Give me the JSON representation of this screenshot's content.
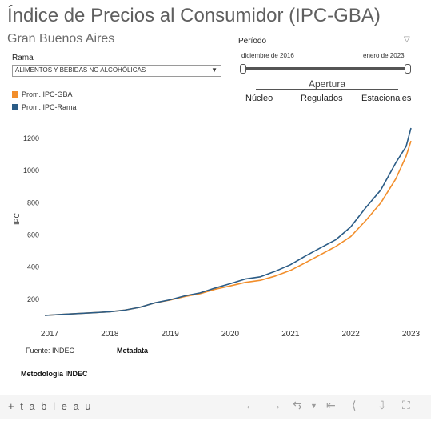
{
  "header": {
    "title": "Índice de Precios al Consumidor  (IPC-GBA)",
    "subtitle": "Gran Buenos Aires"
  },
  "filters": {
    "rama_label": "Rama",
    "rama_value": "ALIMENTOS Y BEBIDAS NO ALCOHÓLICAS",
    "periodo_label": "Período",
    "periodo_start": "diciembre de 2016",
    "periodo_end": "enero de 2023"
  },
  "apertura": {
    "title": "Apertura",
    "items": [
      "Núcleo",
      "Regulados",
      "Estacionales"
    ]
  },
  "legend": [
    {
      "label": "Prom. IPC-GBA",
      "color": "#f28e2b"
    },
    {
      "label": "Prom. IPC-Rama",
      "color": "#2b5c86"
    }
  ],
  "chart_data": {
    "type": "line",
    "ylabel": "IPC",
    "ylim": [
      80,
      1290
    ],
    "yticks": [
      200,
      400,
      600,
      800,
      1000,
      1200
    ],
    "xlim": [
      2016.92,
      2023.08
    ],
    "xticks": [
      2017,
      2018,
      2019,
      2020,
      2021,
      2022,
      2023
    ],
    "grid": false,
    "x": [
      2016.92,
      2017.25,
      2017.5,
      2017.75,
      2018.0,
      2018.25,
      2018.5,
      2018.75,
      2019.0,
      2019.25,
      2019.5,
      2019.75,
      2020.0,
      2020.25,
      2020.5,
      2020.75,
      2021.0,
      2021.25,
      2021.5,
      2021.75,
      2022.0,
      2022.25,
      2022.5,
      2022.75,
      2022.92,
      2023.0
    ],
    "series": [
      {
        "name": "Prom. IPC-GBA",
        "color": "#f28e2b",
        "values": [
          100,
          107,
          112,
          117,
          123,
          133,
          150,
          178,
          195,
          218,
          235,
          262,
          283,
          305,
          318,
          345,
          380,
          428,
          478,
          528,
          590,
          690,
          800,
          950,
          1090,
          1185
        ]
      },
      {
        "name": "Prom. IPC-Rama",
        "color": "#2b5c86",
        "values": [
          100,
          107,
          112,
          117,
          123,
          133,
          150,
          178,
          197,
          222,
          240,
          270,
          297,
          326,
          340,
          375,
          415,
          470,
          520,
          570,
          650,
          770,
          880,
          1050,
          1150,
          1265
        ]
      }
    ]
  },
  "footer": {
    "fuente": "Fuente: INDEC",
    "metadata": "Metadata",
    "metodologia": "Metodología INDEC"
  },
  "toolbar": {
    "logo": "+ t a b l e a u",
    "icons": [
      "undo-icon",
      "redo-icon",
      "revert-icon",
      "reset-icon",
      "share-icon",
      "download-icon",
      "fullscreen-icon"
    ]
  }
}
